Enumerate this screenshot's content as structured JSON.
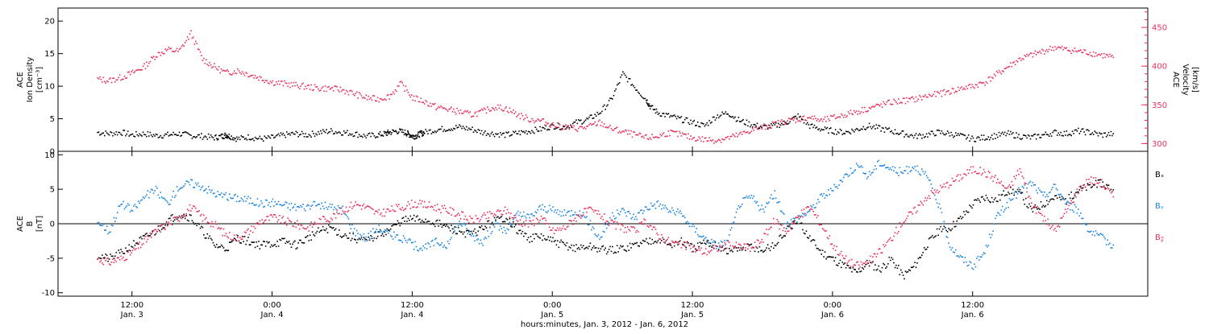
{
  "chart_data": [
    {
      "type": "scatter",
      "panel": "top",
      "ylabel_left": [
        "ACE",
        "Ion Density",
        "[cm⁻³]"
      ],
      "ylabel_right": [
        "ACE",
        "Velocity",
        "[km/s]"
      ],
      "ylim_left": [
        0,
        22
      ],
      "yticks_left": [
        0,
        5,
        10,
        15,
        20
      ],
      "ylim_right": [
        290,
        475
      ],
      "yticks_right": [
        300,
        350,
        400,
        450
      ],
      "right_axis_color": "#e8305b",
      "series": [
        {
          "axis": "left",
          "color": "#000000",
          "x": [
            0,
            6,
            12,
            18,
            24,
            30,
            36,
            42,
            48,
            54,
            60,
            64,
            66,
            68,
            72,
            78,
            84,
            90,
            96,
            102,
            108,
            114,
            120,
            126,
            132,
            138,
            144,
            148,
            150,
            154,
            158,
            160,
            162,
            164,
            166,
            168,
            174,
            180,
            186,
            192,
            198,
            204,
            210,
            216,
            222,
            228,
            234,
            240,
            246,
            252,
            258,
            264,
            270,
            276,
            282,
            284,
            288,
            294,
            300,
            306,
            312,
            318,
            324,
            330,
            336,
            342,
            348,
            354,
            360,
            366,
            372,
            378,
            384,
            390,
            396,
            402,
            408,
            414,
            420,
            426,
            432,
            438,
            444,
            450,
            456,
            462,
            468,
            474,
            480,
            486,
            492,
            498,
            504,
            510,
            516,
            522
          ],
          "y": [
            3.0,
            2.8,
            3.0,
            2.6,
            2.8,
            2.5,
            2.6,
            2.8,
            2.5,
            2.4,
            2.2,
            2.4,
            2.6,
            2.4,
            2.0,
            2.3,
            2.0,
            2.2,
            2.6,
            2.8,
            2.6,
            3.0,
            3.2,
            3.0,
            2.8,
            2.4,
            2.6,
            2.8,
            3.0,
            3.2,
            3.0,
            2.7,
            2.4,
            2.5,
            2.8,
            3.0,
            3.4,
            3.6,
            3.8,
            3.5,
            3.0,
            2.8,
            2.6,
            2.9,
            3.2,
            3.5,
            4.0,
            3.8,
            4.5,
            5.0,
            6.0,
            8.0,
            12.0,
            10.0,
            8.0,
            7.0,
            6.0,
            5.5,
            5.0,
            4.5,
            4.0,
            5.5,
            6.0,
            4.8,
            4.2,
            3.8,
            4.0,
            4.5,
            5.5,
            4.0,
            3.5,
            3.2,
            3.0,
            3.4,
            4.0,
            3.6,
            3.2,
            2.8,
            2.4,
            2.6,
            3.0,
            2.8,
            2.4,
            2.0,
            2.2,
            2.5,
            2.8,
            2.4,
            2.2,
            2.6,
            3.0,
            2.8,
            3.2,
            3.0,
            2.6,
            2.8
          ]
        },
        {
          "axis": "right",
          "color": "#e8305b",
          "x": [
            0,
            6,
            12,
            18,
            24,
            30,
            36,
            42,
            48,
            54,
            60,
            66,
            72,
            78,
            84,
            90,
            96,
            102,
            108,
            114,
            120,
            126,
            132,
            138,
            144,
            150,
            156,
            162,
            168,
            174,
            180,
            186,
            192,
            198,
            204,
            210,
            216,
            222,
            228,
            234,
            240,
            246,
            252,
            258,
            264,
            270,
            276,
            282,
            288,
            294,
            300,
            306,
            312,
            318,
            324,
            330,
            336,
            342,
            348,
            354,
            360,
            366,
            372,
            378,
            384,
            390,
            396,
            402,
            408,
            414,
            420,
            426,
            432,
            438,
            444,
            450,
            456,
            462,
            468,
            474,
            480,
            486,
            492,
            498,
            504,
            510,
            516,
            522
          ],
          "y": [
            384,
            382,
            386,
            392,
            400,
            415,
            422,
            420,
            443,
            410,
            400,
            392,
            395,
            390,
            385,
            380,
            378,
            376,
            374,
            372,
            372,
            370,
            365,
            360,
            358,
            362,
            378,
            360,
            355,
            348,
            345,
            342,
            338,
            342,
            348,
            346,
            338,
            332,
            330,
            325,
            322,
            320,
            322,
            328,
            320,
            316,
            312,
            308,
            310,
            315,
            312,
            308,
            306,
            305,
            308,
            312,
            318,
            322,
            326,
            330,
            332,
            335,
            330,
            334,
            338,
            342,
            346,
            350,
            354,
            356,
            358,
            362,
            365,
            368,
            372,
            375,
            380,
            390,
            400,
            410,
            415,
            420,
            425,
            422,
            420,
            418,
            415,
            412
          ]
        }
      ]
    },
    {
      "type": "scatter",
      "panel": "bottom",
      "ylabel_left": [
        "ACE",
        "B",
        "[nT]"
      ],
      "ylim": [
        -10.5,
        10.5
      ],
      "yticks": [
        -10,
        -5,
        0,
        5,
        10
      ],
      "zero_line": true,
      "legend_position": "right",
      "series": [
        {
          "name": "Bₓ",
          "color": "#000000",
          "x": [
            0,
            6,
            12,
            18,
            24,
            30,
            36,
            42,
            48,
            54,
            60,
            66,
            72,
            78,
            84,
            90,
            96,
            102,
            108,
            114,
            120,
            126,
            132,
            138,
            144,
            150,
            156,
            162,
            168,
            174,
            180,
            186,
            192,
            198,
            204,
            210,
            216,
            222,
            228,
            234,
            240,
            246,
            252,
            258,
            264,
            270,
            276,
            282,
            288,
            294,
            300,
            306,
            312,
            318,
            324,
            330,
            336,
            342,
            348,
            354,
            360,
            366,
            372,
            378,
            384,
            390,
            396,
            402,
            408,
            414,
            420,
            426,
            432,
            438,
            444,
            450,
            456,
            462,
            468,
            474,
            480,
            486,
            492,
            498,
            504,
            510,
            516,
            522
          ],
          "y": [
            -4.5,
            -5.0,
            -4.2,
            -3.0,
            -2.0,
            -1.0,
            0.5,
            1.5,
            1.0,
            -1.0,
            -3.0,
            -3.5,
            -2.0,
            -2.5,
            -3.0,
            -2.8,
            -2.5,
            -3.0,
            -2.0,
            -1.0,
            -0.5,
            -1.5,
            -2.0,
            -2.5,
            -1.5,
            -0.8,
            0.5,
            0.8,
            0.6,
            0.2,
            -0.5,
            -1.0,
            -1.5,
            -0.5,
            0.5,
            1.0,
            -1.0,
            -2.0,
            -1.8,
            -2.5,
            -3.0,
            -3.5,
            -3.2,
            -3.6,
            -3.8,
            -3.5,
            -3.0,
            -2.5,
            -2.0,
            -3.0,
            -2.5,
            -3.5,
            -2.8,
            -3.0,
            -4.0,
            -3.5,
            -3.2,
            -3.8,
            -3.0,
            -1.0,
            0.5,
            -2.0,
            -4.0,
            -5.0,
            -6.0,
            -7.0,
            -5.5,
            -6.5,
            -5.0,
            -7.5,
            -6.0,
            -3.0,
            -1.0,
            -0.5,
            1.0,
            3.0,
            4.0,
            3.5,
            5.0,
            4.5,
            2.0,
            3.0,
            4.0,
            3.5,
            5.0,
            5.5,
            6.0,
            5.0
          ]
        },
        {
          "name": "Bᵧ",
          "color": "#1a86e0",
          "x": [
            0,
            6,
            12,
            18,
            24,
            30,
            36,
            42,
            48,
            54,
            60,
            66,
            72,
            78,
            84,
            90,
            96,
            102,
            108,
            114,
            120,
            126,
            132,
            138,
            144,
            150,
            156,
            162,
            168,
            174,
            180,
            186,
            192,
            198,
            204,
            210,
            216,
            222,
            228,
            234,
            240,
            246,
            252,
            258,
            264,
            270,
            276,
            282,
            288,
            294,
            300,
            306,
            312,
            318,
            324,
            330,
            336,
            342,
            348,
            354,
            360,
            366,
            372,
            378,
            384,
            390,
            396,
            402,
            408,
            414,
            420,
            426,
            432,
            438,
            444,
            450,
            456,
            462,
            468,
            474,
            480,
            486,
            492,
            498,
            504,
            510,
            516,
            522
          ],
          "y": [
            0.5,
            -1.0,
            3.0,
            2.0,
            4.0,
            5.0,
            3.0,
            5.5,
            6.0,
            5.5,
            4.5,
            4.0,
            3.8,
            3.5,
            3.0,
            3.2,
            2.8,
            2.5,
            2.6,
            2.8,
            2.5,
            2.2,
            -1.0,
            -2.0,
            -0.5,
            -1.5,
            -2.0,
            -3.0,
            -3.5,
            -2.5,
            -3.0,
            0.5,
            -1.5,
            -2.5,
            0.0,
            -1.0,
            1.5,
            1.0,
            2.5,
            2.0,
            1.5,
            2.0,
            0.5,
            -2.0,
            1.0,
            2.0,
            1.0,
            2.5,
            3.0,
            2.0,
            1.5,
            -0.5,
            -2.0,
            -3.0,
            -2.5,
            3.0,
            4.0,
            2.0,
            4.5,
            0.0,
            1.0,
            2.0,
            4.0,
            5.0,
            7.0,
            8.5,
            7.0,
            9.0,
            8.0,
            7.5,
            8.5,
            7.0,
            3.0,
            -3.0,
            -5.0,
            -6.0,
            -4.0,
            1.0,
            3.0,
            5.0,
            6.0,
            4.0,
            5.5,
            3.0,
            2.0,
            -1.0,
            -2.0,
            -3.0
          ]
        },
        {
          "name": "B𝓏",
          "color": "#e8305b",
          "x": [
            0,
            6,
            12,
            18,
            24,
            30,
            36,
            42,
            48,
            54,
            60,
            66,
            72,
            78,
            84,
            90,
            96,
            102,
            108,
            114,
            120,
            126,
            132,
            138,
            144,
            150,
            156,
            162,
            168,
            174,
            180,
            186,
            192,
            198,
            204,
            210,
            216,
            222,
            228,
            234,
            240,
            246,
            252,
            258,
            264,
            270,
            276,
            282,
            288,
            294,
            300,
            306,
            312,
            318,
            324,
            330,
            336,
            342,
            348,
            354,
            360,
            366,
            372,
            378,
            384,
            390,
            396,
            402,
            408,
            414,
            420,
            426,
            432,
            438,
            444,
            450,
            456,
            462,
            468,
            474,
            480,
            486,
            492,
            498,
            504,
            510,
            516,
            522
          ],
          "y": [
            -5.0,
            -5.5,
            -5.0,
            -4.0,
            -2.5,
            -1.0,
            0.0,
            1.0,
            2.5,
            1.0,
            0.0,
            -1.5,
            -2.0,
            -1.0,
            0.5,
            1.0,
            0.5,
            0.0,
            -0.5,
            0.5,
            1.0,
            2.0,
            3.0,
            2.5,
            1.5,
            2.0,
            2.5,
            3.0,
            2.8,
            2.5,
            2.0,
            1.5,
            0.5,
            1.0,
            1.5,
            2.0,
            0.5,
            0.0,
            1.0,
            -1.0,
            -0.5,
            1.0,
            2.0,
            1.5,
            0.0,
            -0.5,
            -1.0,
            0.5,
            -1.5,
            -2.5,
            -3.0,
            -3.5,
            -4.0,
            -3.5,
            -3.0,
            -3.2,
            -3.5,
            -2.0,
            0.5,
            -1.0,
            1.0,
            2.5,
            0.0,
            -3.0,
            -5.0,
            -6.0,
            -5.5,
            -4.0,
            -2.0,
            0.5,
            2.0,
            4.0,
            5.0,
            6.0,
            7.0,
            8.0,
            7.5,
            6.5,
            5.0,
            8.0,
            3.0,
            1.0,
            -1.0,
            2.0,
            5.0,
            6.5,
            6.0,
            4.0
          ]
        }
      ]
    }
  ],
  "x_axis": {
    "ticks": [
      {
        "time": "12:00",
        "day": "Jan. 3"
      },
      {
        "time": "0:00",
        "day": "Jan. 4"
      },
      {
        "time": "12:00",
        "day": "Jan. 4"
      },
      {
        "time": "0:00",
        "day": "Jan. 5"
      },
      {
        "time": "12:00",
        "day": "Jan. 5"
      },
      {
        "time": "0:00",
        "day": "Jan. 6"
      },
      {
        "time": "12:00",
        "day": "Jan. 6"
      }
    ],
    "xlabel": "hours:minutes, Jan.  3, 2012 - Jan.  6, 2012"
  }
}
